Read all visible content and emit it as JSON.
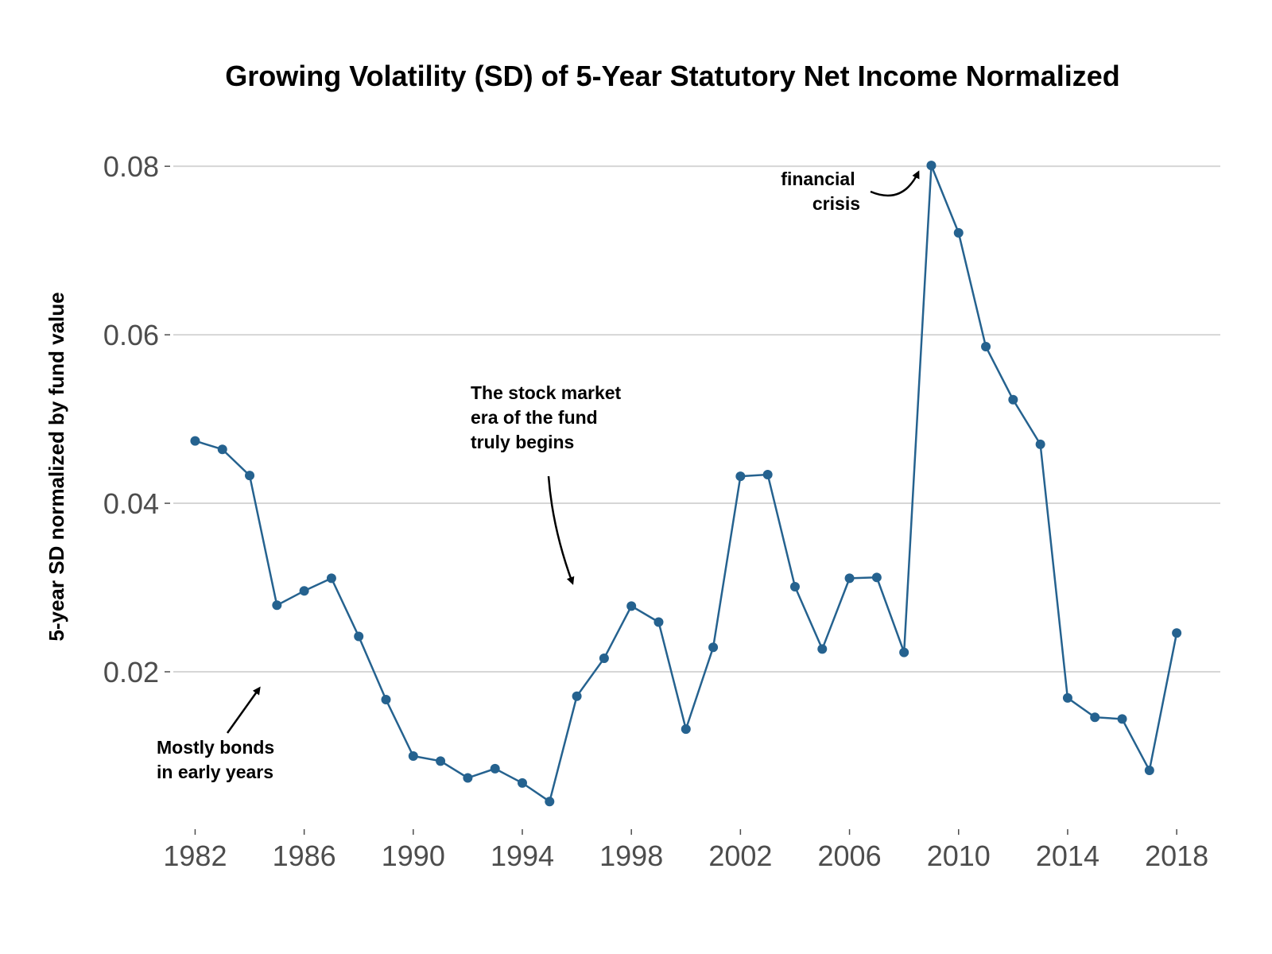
{
  "chart_data": {
    "type": "line",
    "title": "Growing Volatility (SD) of 5-Year Statutory Net Income Normalized",
    "xlabel": "",
    "ylabel": "5-year SD normalized by fund value",
    "xlim": [
      1981.2,
      2019.6
    ],
    "ylim": [
      0.0016,
      0.0853
    ],
    "x_ticks": [
      1982,
      1986,
      1990,
      1994,
      1998,
      2002,
      2006,
      2010,
      2014,
      2018
    ],
    "y_ticks": [
      0.02,
      0.04,
      0.06,
      0.08
    ],
    "y_tick_labels": [
      "0.02",
      "0.04",
      "0.06",
      "0.08"
    ],
    "grid": "horizontal major gridlines",
    "legend": "none",
    "series": [
      {
        "color": "#25628f",
        "x": [
          1982,
          1983,
          1984,
          1985,
          1986,
          1987,
          1988,
          1989,
          1990,
          1991,
          1992,
          1993,
          1994,
          1995,
          1996,
          1997,
          1998,
          1999,
          2000,
          2001,
          2002,
          2003,
          2004,
          2005,
          2006,
          2007,
          2008,
          2009,
          2010,
          2011,
          2012,
          2013,
          2014,
          2015,
          2016,
          2017,
          2018
        ],
        "y": [
          0.0474,
          0.0464,
          0.0433,
          0.0279,
          0.0296,
          0.0311,
          0.0242,
          0.0167,
          0.01,
          0.0094,
          0.0074,
          0.0085,
          0.0068,
          0.0046,
          0.0171,
          0.0216,
          0.0278,
          0.0259,
          0.0132,
          0.0229,
          0.0432,
          0.0434,
          0.0301,
          0.0227,
          0.0311,
          0.0312,
          0.0223,
          0.0801,
          0.0721,
          0.0586,
          0.0523,
          0.047,
          0.0169,
          0.0146,
          0.0144,
          0.0083,
          0.0246
        ]
      }
    ],
    "annotations": [
      {
        "lines": [
          "Mostly bonds",
          "in early years"
        ]
      },
      {
        "lines": [
          "The stock market",
          "era of the fund",
          "truly begins"
        ]
      },
      {
        "lines": [
          "financial",
          "crisis"
        ]
      }
    ]
  }
}
